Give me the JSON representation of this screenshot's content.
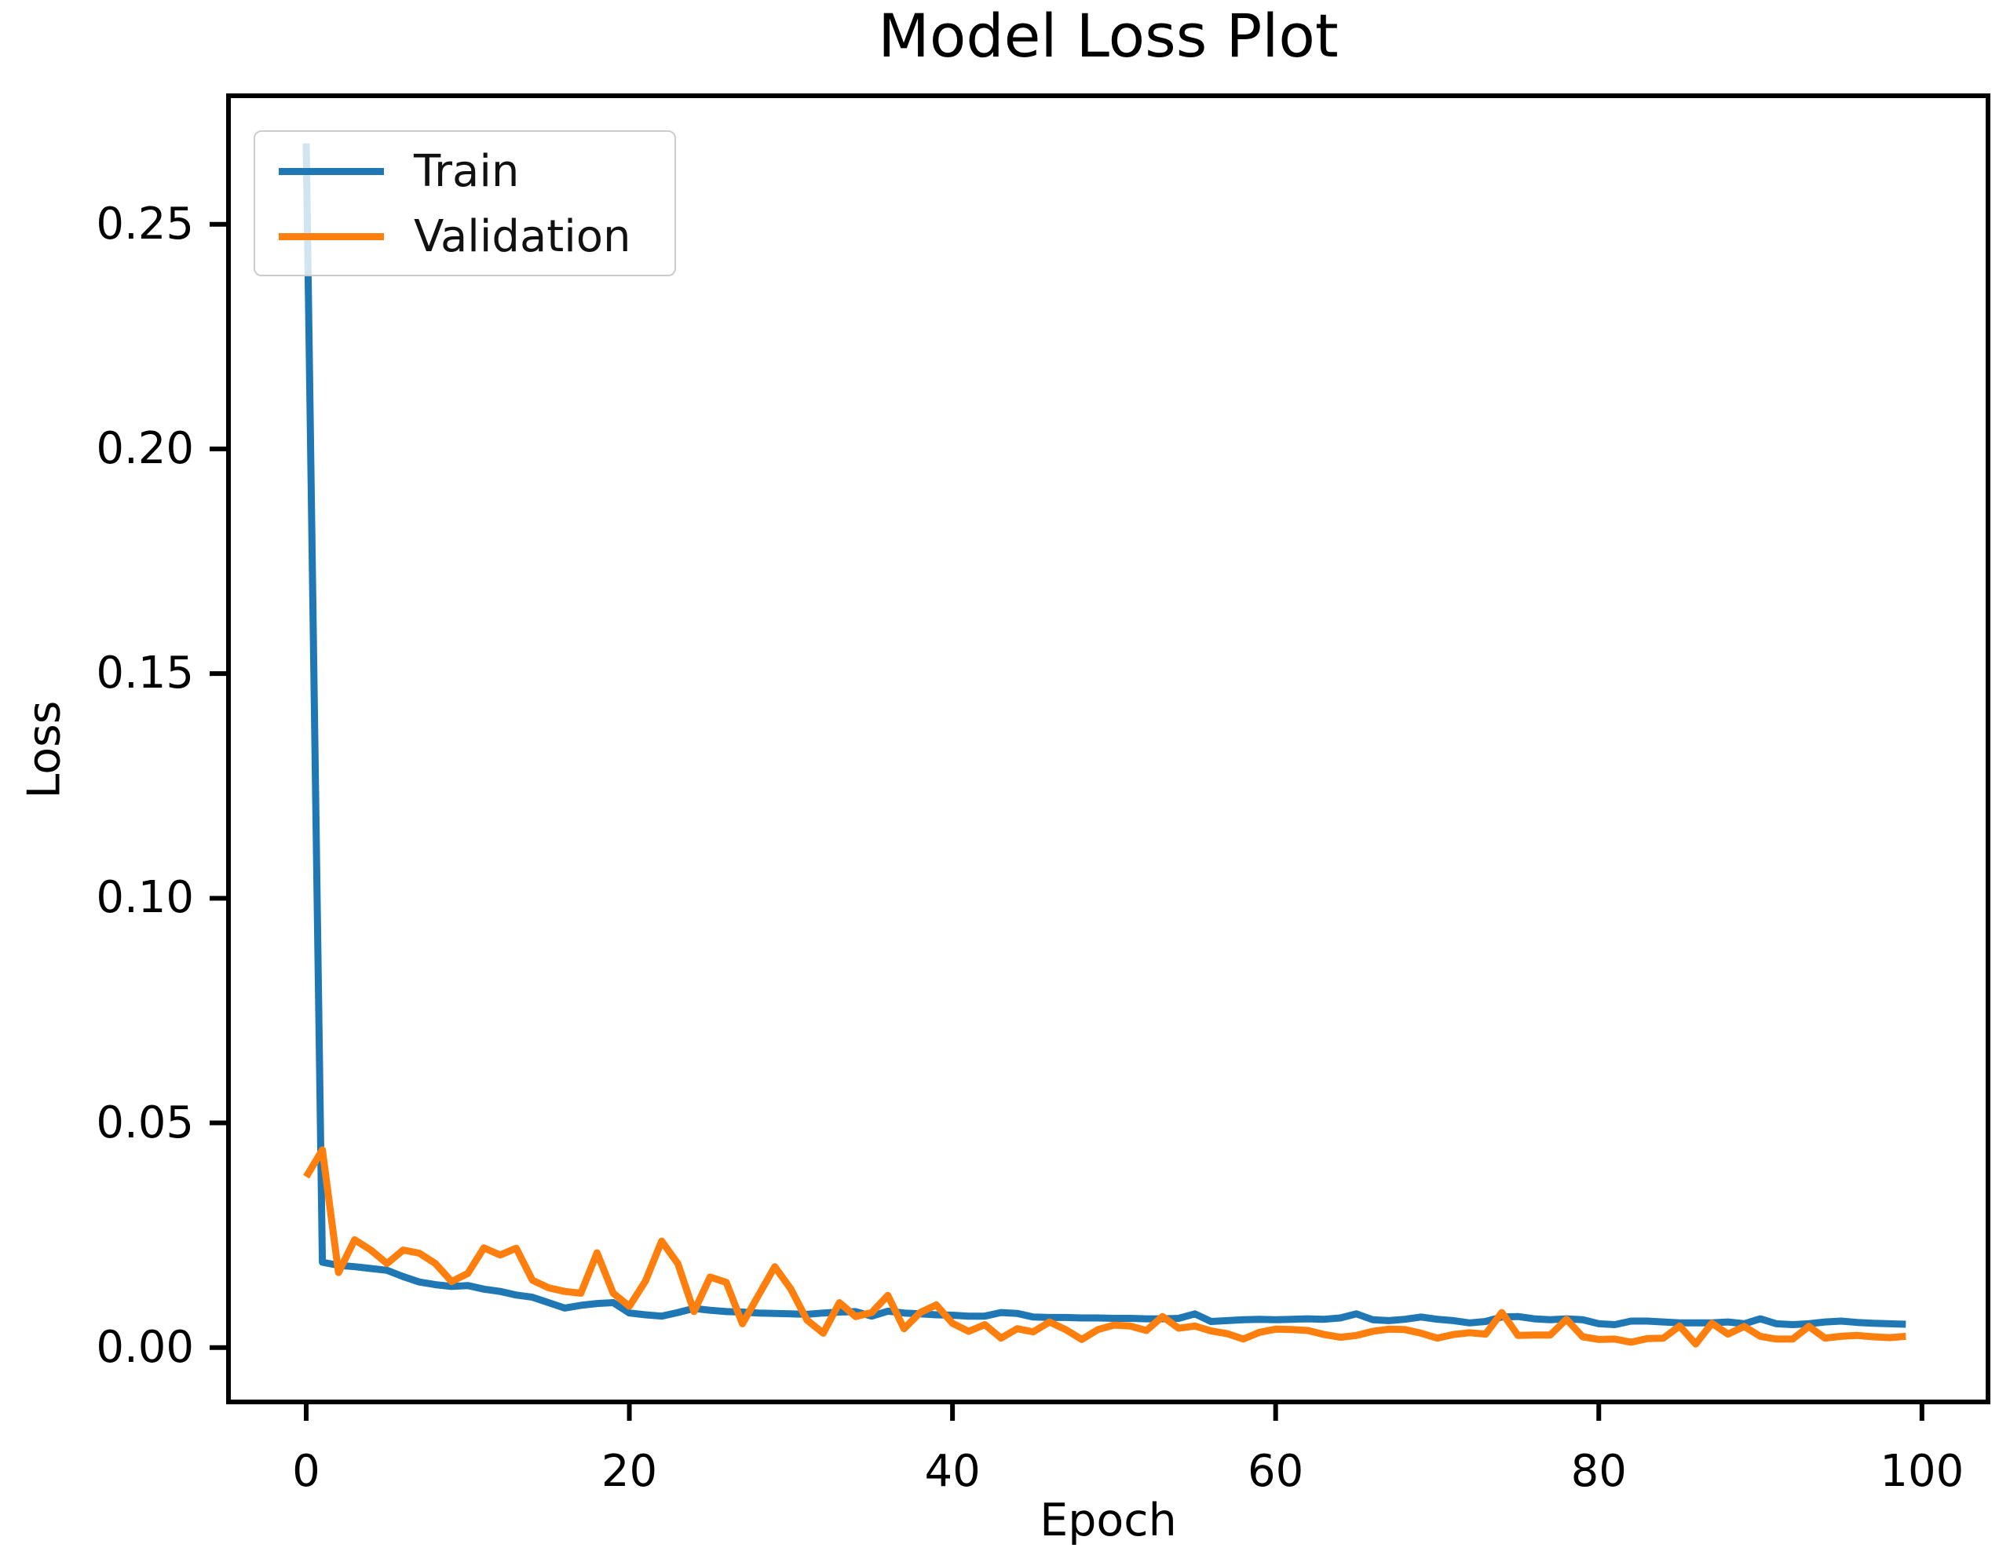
{
  "page": {
    "background": "#ffffff"
  },
  "chart_data": {
    "type": "line",
    "title": "Model Loss Plot",
    "xlabel": "Epoch",
    "ylabel": "Loss",
    "grid": false,
    "legend_position": "upper-left",
    "x_ticks": [
      0,
      20,
      40,
      60,
      80,
      100
    ],
    "y_ticks": [
      "0.00",
      "0.05",
      "0.10",
      "0.15",
      "0.20",
      "0.25"
    ],
    "y_tick_values": [
      0.0,
      0.05,
      0.1,
      0.15,
      0.2,
      0.25
    ],
    "xlim": [
      -4.81,
      104.09
    ],
    "ylim": [
      -0.0121,
      0.2786
    ],
    "x": [
      0,
      1,
      2,
      3,
      4,
      5,
      6,
      7,
      8,
      9,
      10,
      11,
      12,
      13,
      14,
      15,
      16,
      17,
      18,
      19,
      20,
      21,
      22,
      23,
      24,
      25,
      26,
      27,
      28,
      29,
      30,
      31,
      32,
      33,
      34,
      35,
      36,
      37,
      38,
      39,
      40,
      41,
      42,
      43,
      44,
      45,
      46,
      47,
      48,
      49,
      50,
      51,
      52,
      53,
      54,
      55,
      56,
      57,
      58,
      59,
      60,
      61,
      62,
      63,
      64,
      65,
      66,
      67,
      68,
      69,
      70,
      71,
      72,
      73,
      74,
      75,
      76,
      77,
      78,
      79,
      80,
      81,
      82,
      83,
      84,
      85,
      86,
      87,
      88,
      89,
      90,
      91,
      92,
      93,
      94,
      95,
      96,
      97,
      98,
      99
    ],
    "series": [
      {
        "name": "Train",
        "color": "#1f77b4",
        "values": [
          0.268,
          0.019,
          0.0183,
          0.018,
          0.0176,
          0.0172,
          0.0158,
          0.0146,
          0.014,
          0.0136,
          0.0138,
          0.013,
          0.0125,
          0.0117,
          0.0112,
          0.01,
          0.0088,
          0.0094,
          0.0098,
          0.01,
          0.0077,
          0.0073,
          0.007,
          0.0078,
          0.0087,
          0.0083,
          0.008,
          0.0079,
          0.0077,
          0.0076,
          0.0075,
          0.0074,
          0.0077,
          0.0079,
          0.008,
          0.007,
          0.0081,
          0.0077,
          0.0075,
          0.0073,
          0.0072,
          0.007,
          0.007,
          0.0078,
          0.0076,
          0.0068,
          0.0067,
          0.0067,
          0.0066,
          0.0066,
          0.0065,
          0.0065,
          0.0064,
          0.0064,
          0.0065,
          0.0075,
          0.0058,
          0.006,
          0.0062,
          0.0063,
          0.0062,
          0.0063,
          0.0064,
          0.0063,
          0.0066,
          0.0075,
          0.0062,
          0.006,
          0.0063,
          0.0068,
          0.0063,
          0.006,
          0.0055,
          0.0058,
          0.0068,
          0.0069,
          0.0064,
          0.0062,
          0.0064,
          0.0062,
          0.0053,
          0.0051,
          0.0059,
          0.0059,
          0.0057,
          0.0055,
          0.0055,
          0.0055,
          0.0057,
          0.0053,
          0.0064,
          0.0053,
          0.0051,
          0.0053,
          0.0057,
          0.0059,
          0.0056,
          0.0054,
          0.0053,
          0.0052
        ]
      },
      {
        "name": "Validation",
        "color": "#ff7f0e",
        "values": [
          0.038,
          0.044,
          0.0167,
          0.024,
          0.0217,
          0.0187,
          0.0217,
          0.021,
          0.0187,
          0.0147,
          0.0165,
          0.0222,
          0.0206,
          0.0221,
          0.015,
          0.0133,
          0.0125,
          0.0121,
          0.0211,
          0.0121,
          0.0092,
          0.0148,
          0.0237,
          0.0187,
          0.008,
          0.0157,
          0.0145,
          0.0053,
          0.0117,
          0.018,
          0.013,
          0.0061,
          0.0032,
          0.01,
          0.0069,
          0.0078,
          0.0116,
          0.0042,
          0.0078,
          0.0095,
          0.0054,
          0.0036,
          0.0051,
          0.0021,
          0.0042,
          0.0035,
          0.0057,
          0.004,
          0.0018,
          0.004,
          0.005,
          0.0048,
          0.0038,
          0.0069,
          0.0043,
          0.0048,
          0.0037,
          0.0031,
          0.0019,
          0.0034,
          0.0041,
          0.004,
          0.0038,
          0.0029,
          0.0023,
          0.0027,
          0.0036,
          0.0041,
          0.004,
          0.0032,
          0.0021,
          0.0029,
          0.0033,
          0.003,
          0.0078,
          0.0027,
          0.0028,
          0.0028,
          0.0063,
          0.0024,
          0.0018,
          0.0019,
          0.0012,
          0.002,
          0.0021,
          0.0048,
          0.0008,
          0.0054,
          0.003,
          0.0047,
          0.0025,
          0.0019,
          0.0019,
          0.0047,
          0.0021,
          0.0025,
          0.0027,
          0.0024,
          0.0022,
          0.0025
        ]
      }
    ]
  }
}
